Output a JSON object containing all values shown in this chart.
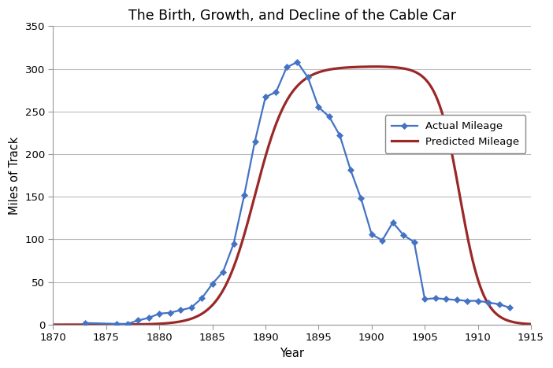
{
  "title": "The Birth, Growth, and Decline of the Cable Car",
  "xlabel": "Year",
  "ylabel": "Miles of Track",
  "xlim": [
    1870,
    1915
  ],
  "ylim": [
    0,
    350
  ],
  "yticks": [
    0,
    50,
    100,
    150,
    200,
    250,
    300,
    350
  ],
  "xticks": [
    1870,
    1875,
    1880,
    1885,
    1890,
    1895,
    1900,
    1905,
    1910,
    1915
  ],
  "actual_years": [
    1873,
    1876,
    1877,
    1878,
    1879,
    1880,
    1881,
    1882,
    1883,
    1884,
    1885,
    1886,
    1887,
    1888,
    1889,
    1890,
    1891,
    1892,
    1893,
    1894,
    1895,
    1896,
    1897,
    1898,
    1899,
    1900,
    1901,
    1902,
    1903,
    1904,
    1905,
    1906,
    1907,
    1908,
    1909,
    1910,
    1911,
    1912,
    1913
  ],
  "actual_mileage": [
    2,
    1,
    1,
    5,
    8,
    13,
    14,
    17,
    20,
    31,
    48,
    62,
    95,
    152,
    215,
    267,
    273,
    302,
    308,
    290,
    255,
    244,
    222,
    182,
    148,
    106,
    99,
    120,
    105,
    97,
    30,
    31,
    30,
    29,
    28,
    28,
    26,
    24,
    20
  ],
  "predicted_color": "#9B2828",
  "actual_color": "#4472C4",
  "background_color": "#ffffff",
  "grid_color": "#bbbbbb",
  "figsize": [
    7.02,
    4.68
  ],
  "dpi": 100
}
